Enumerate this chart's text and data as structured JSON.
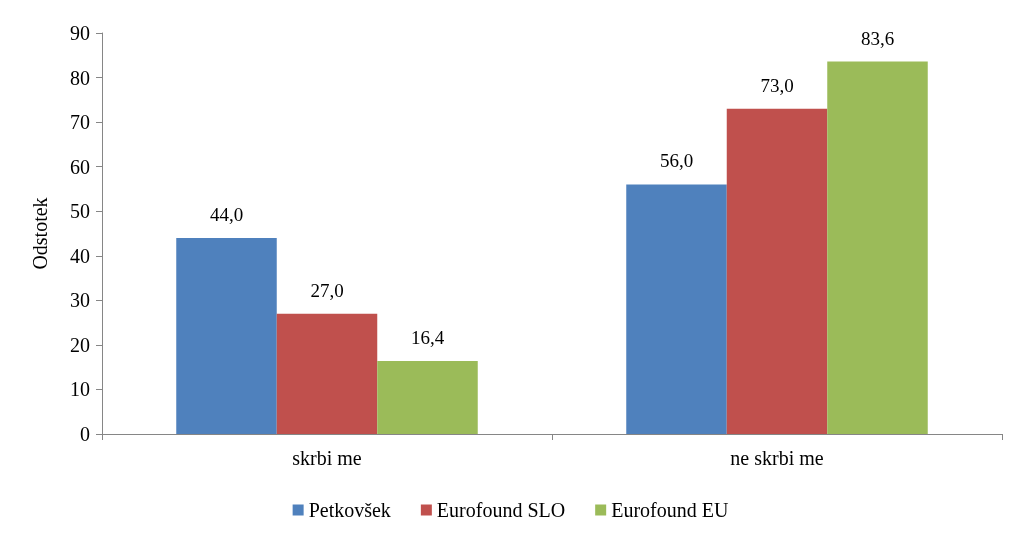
{
  "chart_data": {
    "type": "bar",
    "ylabel": "Odstotek",
    "categories": [
      "skrbi me",
      "ne skrbi me"
    ],
    "series": [
      {
        "name": "Petkovšek",
        "color": "#4f81bd",
        "values": [
          44.0,
          56.0
        ],
        "value_labels": [
          "44,0",
          "56,0"
        ]
      },
      {
        "name": "Eurofound SLO",
        "color": "#c0504d",
        "values": [
          27.0,
          73.0
        ],
        "value_labels": [
          "27,0",
          "73,0"
        ]
      },
      {
        "name": "Eurofound EU",
        "color": "#9bbb59",
        "values": [
          16.4,
          83.6
        ],
        "value_labels": [
          "16,4",
          "83,6"
        ]
      }
    ],
    "ylim": [
      0,
      90
    ],
    "yticks": [
      0,
      10,
      20,
      30,
      40,
      50,
      60,
      70,
      80,
      90
    ],
    "grid": false,
    "legend": "bottom"
  }
}
